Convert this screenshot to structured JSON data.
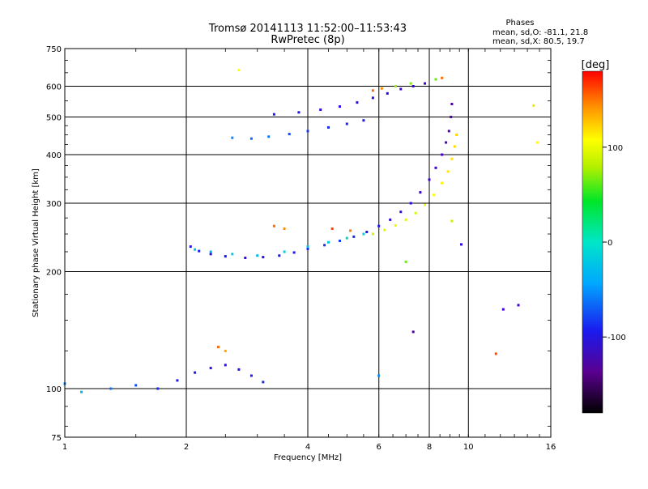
{
  "chart_data": {
    "type": "scatter",
    "title": "Tromsø 20141113 11:52:00–11:53:43",
    "subtitle": "RwPretec (8p)",
    "stats": {
      "heading": "Phases",
      "line1": "mean, sd,O: -81.1, 21.8",
      "line2": "mean, sd,X:  80.5, 19.7"
    },
    "xlabel": "Frequency [MHz]",
    "ylabel": "Stationary phase Virtual Height [km]",
    "x_scale": "log",
    "y_scale": "log",
    "xlim": [
      1,
      16
    ],
    "ylim": [
      75,
      750
    ],
    "x_ticks": [
      1,
      2,
      4,
      6,
      8,
      10,
      16
    ],
    "x_tick_labels": [
      "1",
      "2",
      "4",
      "6",
      "8",
      "10",
      "16"
    ],
    "y_ticks": [
      75,
      100,
      200,
      300,
      400,
      500,
      600,
      750
    ],
    "y_tick_labels": [
      "75",
      "100",
      "200",
      "300",
      "400",
      "500",
      "600",
      "750"
    ],
    "grid": true,
    "colorbar": {
      "label": "[deg]",
      "range": [
        -180,
        180
      ],
      "tick_values": [
        100,
        0,
        -100
      ],
      "tick_labels": [
        "100",
        "0",
        "-100"
      ]
    },
    "series": [
      {
        "points": [
          [
            2.05,
            232,
            -100
          ],
          [
            2.15,
            226,
            -95
          ],
          [
            2.3,
            222,
            -105
          ],
          [
            2.5,
            219,
            -98
          ],
          [
            2.8,
            217,
            -110
          ],
          [
            3.1,
            218,
            -102
          ],
          [
            3.4,
            220,
            -95
          ],
          [
            3.7,
            224,
            -100
          ],
          [
            4.0,
            229,
            -92
          ],
          [
            4.4,
            234,
            -88
          ],
          [
            4.8,
            240,
            -85
          ],
          [
            5.2,
            246,
            -90
          ],
          [
            5.6,
            253,
            -95
          ],
          [
            6.0,
            262,
            -100
          ],
          [
            6.4,
            272,
            -105
          ],
          [
            6.8,
            285,
            -110
          ],
          [
            7.2,
            300,
            -115
          ],
          [
            7.6,
            320,
            -118
          ],
          [
            8.0,
            345,
            -122
          ],
          [
            8.3,
            370,
            -125
          ],
          [
            8.6,
            400,
            -128
          ],
          [
            8.8,
            430,
            -130
          ],
          [
            8.95,
            460,
            -132
          ],
          [
            9.05,
            500,
            -134
          ],
          [
            9.1,
            540,
            -136
          ],
          [
            2.1,
            228,
            -30
          ],
          [
            2.3,
            225,
            -40
          ],
          [
            2.6,
            222,
            -25
          ],
          [
            3.0,
            220,
            -35
          ],
          [
            3.5,
            225,
            -20
          ],
          [
            4.0,
            232,
            -30
          ],
          [
            4.5,
            238,
            -25
          ],
          [
            5.0,
            244,
            -20
          ],
          [
            5.5,
            250,
            -15
          ],
          [
            5.8,
            250,
            85
          ],
          [
            6.2,
            256,
            90
          ],
          [
            6.6,
            263,
            95
          ],
          [
            7.0,
            272,
            92
          ],
          [
            7.4,
            283,
            88
          ],
          [
            7.8,
            297,
            96
          ],
          [
            8.2,
            315,
            100
          ],
          [
            8.6,
            338,
            105
          ],
          [
            8.9,
            362,
            108
          ],
          [
            9.1,
            390,
            110
          ],
          [
            9.25,
            420,
            112
          ],
          [
            9.35,
            450,
            115
          ],
          [
            2.6,
            442,
            -60
          ],
          [
            2.9,
            440,
            -70
          ],
          [
            3.2,
            445,
            -65
          ],
          [
            3.6,
            452,
            -80
          ],
          [
            4.0,
            460,
            -85
          ],
          [
            4.5,
            470,
            -90
          ],
          [
            5.0,
            480,
            -92
          ],
          [
            5.5,
            490,
            -95
          ],
          [
            3.3,
            508,
            -95
          ],
          [
            3.8,
            514,
            -100
          ],
          [
            4.3,
            522,
            -105
          ],
          [
            4.8,
            532,
            -108
          ],
          [
            5.3,
            545,
            -110
          ],
          [
            5.8,
            560,
            -112
          ],
          [
            6.3,
            575,
            -115
          ],
          [
            6.8,
            590,
            -118
          ],
          [
            7.3,
            600,
            -120
          ],
          [
            7.8,
            610,
            -122
          ],
          [
            5.8,
            585,
            150
          ],
          [
            6.1,
            592,
            140
          ],
          [
            6.6,
            600,
            70
          ],
          [
            7.2,
            610,
            65
          ],
          [
            8.3,
            625,
            60
          ],
          [
            8.6,
            630,
            150
          ],
          [
            3.3,
            262,
            150
          ],
          [
            3.5,
            258,
            140
          ],
          [
            4.6,
            258,
            160
          ],
          [
            5.1,
            255,
            145
          ],
          [
            1.0,
            103,
            -60
          ],
          [
            1.1,
            98,
            -40
          ],
          [
            1.3,
            100,
            -70
          ],
          [
            1.5,
            102,
            -80
          ],
          [
            1.7,
            100,
            -90
          ],
          [
            1.9,
            105,
            -95
          ],
          [
            2.1,
            110,
            -100
          ],
          [
            2.3,
            113,
            -105
          ],
          [
            2.5,
            115,
            -110
          ],
          [
            2.7,
            112,
            -100
          ],
          [
            2.9,
            108,
            -95
          ],
          [
            3.1,
            104,
            -90
          ],
          [
            2.4,
            128,
            150
          ],
          [
            2.5,
            125,
            130
          ],
          [
            2.7,
            660,
            100
          ],
          [
            14.5,
            535,
            110
          ],
          [
            14.8,
            430,
            100
          ],
          [
            9.1,
            270,
            80
          ],
          [
            12.2,
            160,
            -120
          ],
          [
            13.3,
            164,
            -125
          ],
          [
            11.7,
            123,
            160
          ],
          [
            6.0,
            108,
            -60
          ],
          [
            7.0,
            212,
            60
          ],
          [
            7.3,
            140,
            -140
          ],
          [
            9.6,
            235,
            -110
          ]
        ]
      }
    ]
  }
}
